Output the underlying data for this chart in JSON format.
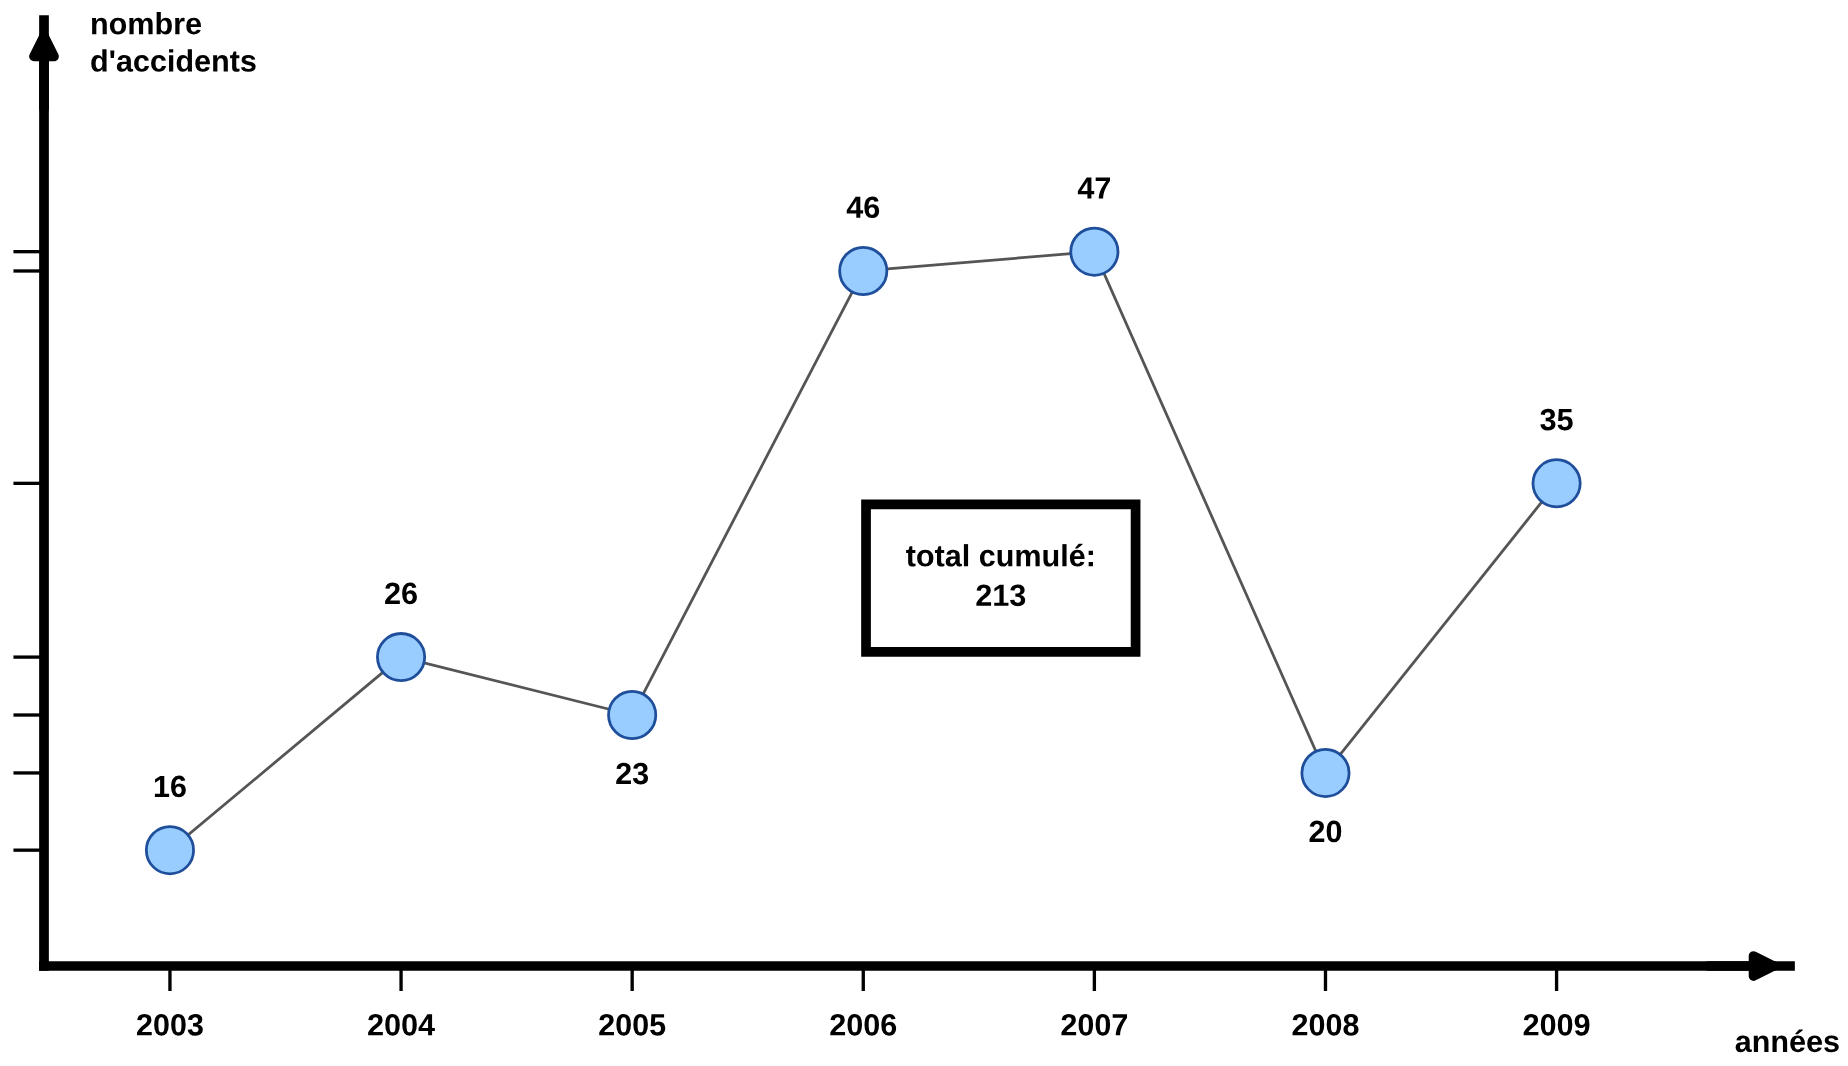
{
  "chart_data": {
    "type": "line",
    "ylabel": "nombre\nd'accidents",
    "xlabel": "années",
    "categories": [
      "2003",
      "2004",
      "2005",
      "2006",
      "2007",
      "2008",
      "2009"
    ],
    "series": [
      {
        "color": "#99ccff",
        "values": [
          16,
          26,
          23,
          46,
          47,
          20,
          35
        ]
      }
    ],
    "ylim": [
      10,
      59
    ],
    "yticks": [
      {
        "value": 16,
        "label": null
      },
      {
        "value": 20,
        "label": null
      },
      {
        "value": 23,
        "label": null
      },
      {
        "value": 26,
        "label": null
      },
      {
        "value": 35,
        "label": null
      },
      {
        "value": 46,
        "label": null
      },
      {
        "value": 47,
        "label": null
      }
    ],
    "tick_labels": "x",
    "marker": "circle",
    "line_style": "solid",
    "data_labels": true,
    "grid": false,
    "legend": false,
    "annotations": [
      "total cumulé:\n213"
    ]
  }
}
